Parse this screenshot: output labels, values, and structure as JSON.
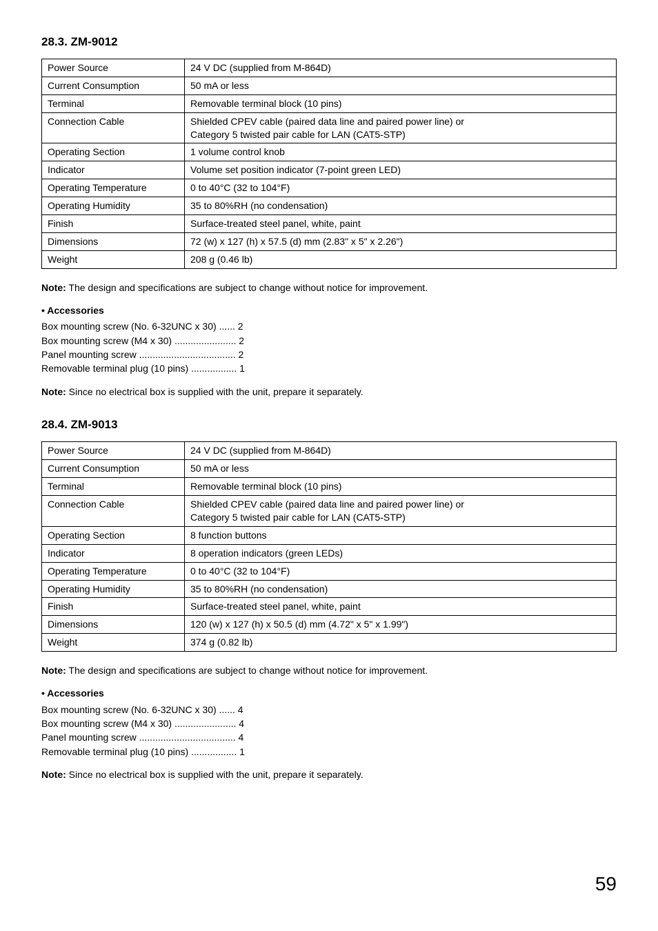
{
  "sec9012": {
    "title": "28.3. ZM-9012",
    "rows": [
      {
        "label": "Power Source",
        "value": "24 V DC (supplied from M-864D)"
      },
      {
        "label": "Current Consumption",
        "value": "50 mA or less"
      },
      {
        "label": "Terminal",
        "value": "Removable terminal block (10 pins)"
      },
      {
        "label": "Connection Cable",
        "value": "Shielded CPEV cable (paired data line and paired power line) or\nCategory 5 twisted pair cable for LAN (CAT5-STP)"
      },
      {
        "label": "Operating Section",
        "value": "1 volume control knob"
      },
      {
        "label": "Indicator",
        "value": "Volume set position indicator (7-point green LED)"
      },
      {
        "label": "Operating Temperature",
        "value": "0 to 40°C (32 to 104°F)"
      },
      {
        "label": "Operating Humidity",
        "value": "35 to 80%RH (no condensation)"
      },
      {
        "label": "Finish",
        "value": "Surface-treated steel panel, white, paint"
      },
      {
        "label": "Dimensions",
        "value": "72 (w) x 127 (h) x 57.5 (d) mm (2.83\" x 5\" x 2.26\")"
      },
      {
        "label": "Weight",
        "value": "208 g (0.46 lb)"
      }
    ],
    "note1_label": "Note:",
    "note1_text": " The design and specifications are subject to change without notice for improvement.",
    "acc_title": "• Accessories",
    "acc_lines": [
      "Box mounting screw (No. 6-32UNC x 30)  ......  2",
      "Box mounting screw (M4 x 30)  .......................  2",
      "Panel mounting screw  ....................................  2",
      "Removable terminal plug (10 pins)  .................  1"
    ],
    "note2_label": "Note:",
    "note2_text": " Since no electrical box is supplied with the unit, prepare it separately."
  },
  "sec9013": {
    "title": "28.4. ZM-9013",
    "rows": [
      {
        "label": "Power Source",
        "value": "24 V DC (supplied from M-864D)"
      },
      {
        "label": "Current Consumption",
        "value": "50 mA or less"
      },
      {
        "label": "Terminal",
        "value": "Removable terminal block (10 pins)"
      },
      {
        "label": "Connection Cable",
        "value": "Shielded CPEV cable (paired data line and paired power line) or\nCategory 5 twisted pair cable for LAN (CAT5-STP)"
      },
      {
        "label": "Operating Section",
        "value": "8 function buttons"
      },
      {
        "label": "Indicator",
        "value": "8 operation indicators (green LEDs)"
      },
      {
        "label": "Operating Temperature",
        "value": "0 to 40°C (32 to 104°F)"
      },
      {
        "label": "Operating Humidity",
        "value": "35 to 80%RH (no condensation)"
      },
      {
        "label": "Finish",
        "value": "Surface-treated steel panel, white, paint"
      },
      {
        "label": "Dimensions",
        "value": "120 (w) x 127 (h) x 50.5 (d) mm (4.72\" x 5\" x 1.99\")"
      },
      {
        "label": "Weight",
        "value": "374 g (0.82 lb)"
      }
    ],
    "note1_label": "Note:",
    "note1_text": " The design and specifications are subject to change without notice for improvement.",
    "acc_title": "• Accessories",
    "acc_lines": [
      "Box mounting screw (No. 6-32UNC x 30)  ......  4",
      "Box mounting screw (M4 x 30)  .......................  4",
      "Panel mounting screw  ....................................  4",
      "Removable terminal plug (10 pins)  .................  1"
    ],
    "note2_label": "Note:",
    "note2_text": " Since no electrical box is supplied with the unit, prepare it separately."
  },
  "page_number": "59"
}
